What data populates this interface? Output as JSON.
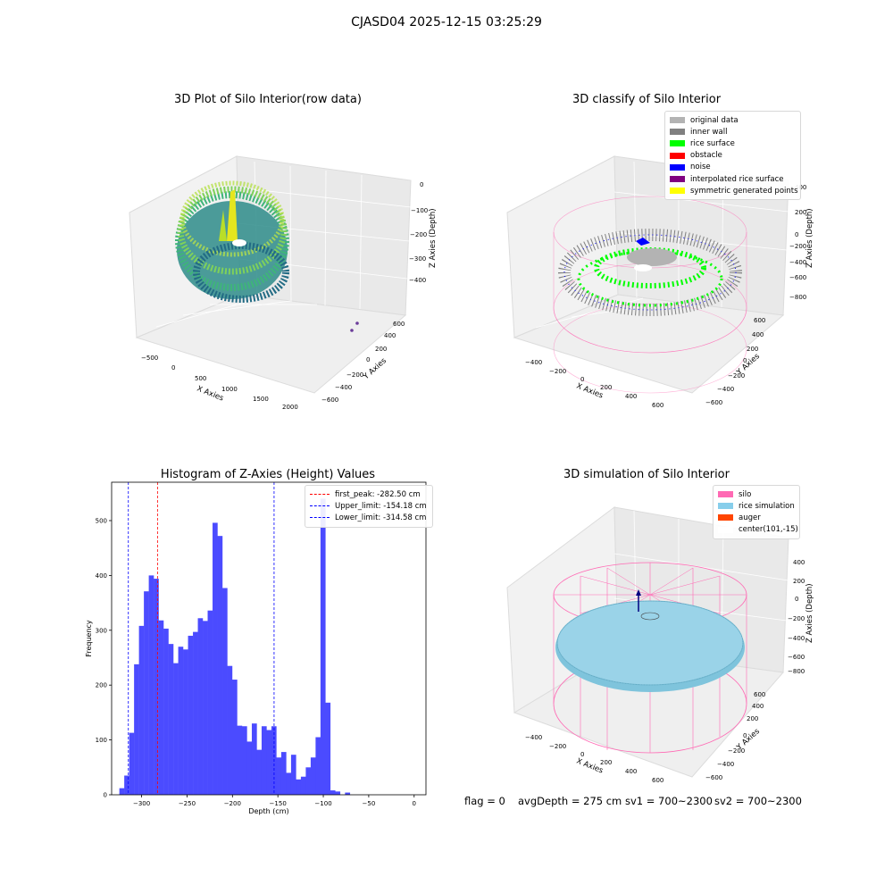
{
  "figure_title": "CJASD04 2025-12-15 03:25:29",
  "panels": {
    "raw": {
      "title": "3D Plot of Silo Interior(row data)",
      "x_label": "X Axies",
      "y_label": "Y Axies",
      "z_label": "Z Axies (Depth)",
      "x_ticks": [
        "−500",
        "0",
        "500",
        "1000",
        "1500",
        "2000"
      ],
      "y_ticks": [
        "−600",
        "−400",
        "−200",
        "0",
        "200",
        "400",
        "600"
      ],
      "z_ticks": [
        "0",
        "−100",
        "−200",
        "−300",
        "−400"
      ]
    },
    "classify": {
      "title": "3D classify of Silo Interior",
      "x_label": "X Axies",
      "y_label": "Y Axies",
      "z_label": "Z Axies (Depth)",
      "x_ticks": [
        "−400",
        "−200",
        "0",
        "200",
        "400",
        "600"
      ],
      "y_ticks": [
        "−600",
        "−400",
        "−200",
        "0",
        "200",
        "400",
        "600"
      ],
      "z_ticks": [
        "400",
        "200",
        "0",
        "−200",
        "−400",
        "−600",
        "−800"
      ],
      "legend": [
        {
          "label": "original data",
          "color": "#b3b3b3"
        },
        {
          "label": "inner wall",
          "color": "#808080"
        },
        {
          "label": "rice surface",
          "color": "#00ff00"
        },
        {
          "label": "obstacle",
          "color": "#ff0000"
        },
        {
          "label": "noise",
          "color": "#0000ff"
        },
        {
          "label": "interpolated rice surface",
          "color": "#800080"
        },
        {
          "label": "symmetric generated points",
          "color": "#ffff00"
        }
      ]
    },
    "simulation": {
      "title": "3D simulation of Silo Interior",
      "x_label": "X Axies",
      "y_label": "Y Axies",
      "z_label": "Z Axies (Depth)",
      "x_ticks": [
        "−400",
        "−200",
        "0",
        "200",
        "400",
        "600"
      ],
      "y_ticks": [
        "−600",
        "−400",
        "−200",
        "0",
        "200",
        "400",
        "600"
      ],
      "z_ticks": [
        "400",
        "200",
        "0",
        "−200",
        "−400",
        "−600",
        "−800"
      ],
      "legend": [
        {
          "label": "silo",
          "color": "#ff69b4"
        },
        {
          "label": "rice simulation",
          "color": "#87ceeb"
        },
        {
          "label": "auger",
          "color": "#ff4500"
        },
        {
          "label": "center(101,-15)",
          "color": "#ffffff"
        }
      ]
    }
  },
  "chart_data": {
    "type": "bar",
    "title": "Histogram of Z-Axies (Height) Values",
    "xlabel": "Depth (cm)",
    "ylabel": "Frequency",
    "xlim": [
      -333,
      13
    ],
    "ylim": [
      0,
      570
    ],
    "x_ticks": [
      -300,
      -250,
      -200,
      -150,
      -100,
      -50,
      0
    ],
    "y_ticks": [
      0,
      100,
      200,
      300,
      400,
      500
    ],
    "bar_color": "#4b4bff",
    "bin_width": 5.4,
    "bin_start": -324.5,
    "values": [
      12,
      35,
      113,
      238,
      308,
      371,
      400,
      394,
      318,
      303,
      275,
      240,
      270,
      265,
      290,
      297,
      322,
      317,
      336,
      496,
      472,
      377,
      235,
      210,
      126,
      125,
      97,
      130,
      82,
      125,
      118,
      125,
      68,
      78,
      40,
      73,
      28,
      33,
      50,
      68,
      105,
      540,
      168,
      8,
      6,
      0,
      4
    ],
    "vlines": [
      {
        "label": "first_peak: -282.50 cm",
        "x": -282.5,
        "color": "#ff0000"
      },
      {
        "label": "Upper_limit: -154.18 cm",
        "x": -154.18,
        "color": "#0000ff"
      },
      {
        "label": "Lower_limit: -314.58 cm",
        "x": -314.58,
        "color": "#0000ff"
      }
    ],
    "legend_position": "top-right"
  },
  "status": {
    "flag": "flag = 0",
    "avg_depth": "avgDepth = 275 cm",
    "sv1": "sv1 = 700~2300",
    "sv2": "sv2 = 700~2300"
  }
}
